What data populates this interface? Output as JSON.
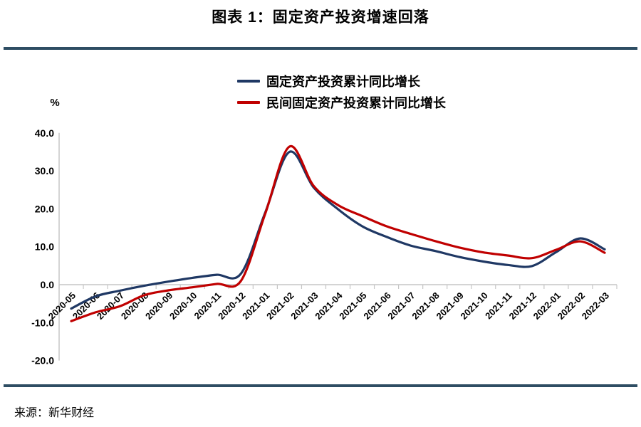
{
  "page": {
    "title": "图表 1：固定资产投资增速回落",
    "source": "来源：新华财经"
  },
  "colors": {
    "divider": "#2e4d63",
    "axis": "#c6c6c6",
    "text": "#000000"
  },
  "chart_data": {
    "type": "line",
    "title": "图表 1：固定资产投资增速回落",
    "ylabel": "%",
    "xlabel": "",
    "ylim": [
      -20,
      40
    ],
    "ytick_step": 10,
    "yticks": [
      "40.0",
      "30.0",
      "20.0",
      "10.0",
      "0.0",
      "-10.0",
      "-20.0"
    ],
    "grid": false,
    "legend_position": "top-center",
    "line_style": "smooth",
    "categories": [
      "2020-05",
      "2020-06",
      "2020-07",
      "2020-08",
      "2020-09",
      "2020-10",
      "2020-11",
      "2020-12",
      "2021-01",
      "2021-02",
      "2021-03",
      "2021-04",
      "2021-05",
      "2021-06",
      "2021-07",
      "2021-08",
      "2021-09",
      "2021-10",
      "2021-11",
      "2021-12",
      "2022-01",
      "2022-02",
      "2022-03"
    ],
    "series": [
      {
        "name": "固定资产投资累计同比增长",
        "color": "#1f3864",
        "values": [
          -6.3,
          -3.1,
          -1.6,
          -0.3,
          0.8,
          1.8,
          2.6,
          2.9,
          19.0,
          35.0,
          25.6,
          19.9,
          15.4,
          12.6,
          10.3,
          8.9,
          7.3,
          6.1,
          5.2,
          4.9,
          8.6,
          12.2,
          9.3
        ]
      },
      {
        "name": "民间固定资产投资累计同比增长",
        "color": "#c00000",
        "values": [
          -9.6,
          -7.3,
          -5.7,
          -2.8,
          -1.5,
          -0.7,
          0.2,
          1.0,
          18.7,
          36.4,
          26.0,
          21.0,
          18.1,
          15.4,
          13.4,
          11.5,
          9.8,
          8.5,
          7.7,
          7.0,
          9.2,
          11.4,
          8.4
        ]
      }
    ]
  }
}
